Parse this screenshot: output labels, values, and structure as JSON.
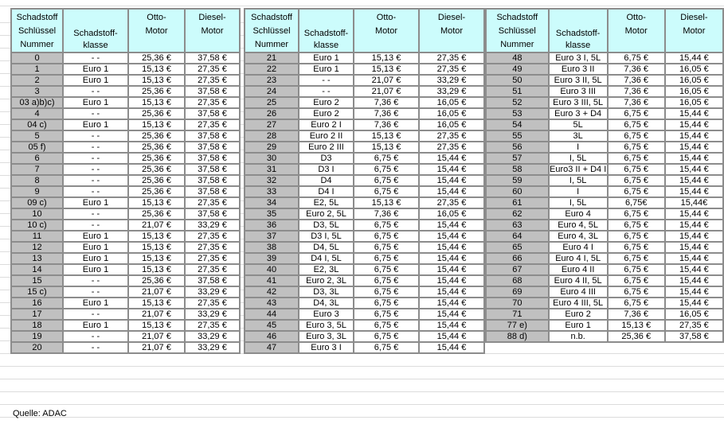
{
  "headers": {
    "number": [
      "Schadstoff",
      "Schlüssel",
      "Nummer"
    ],
    "klasse": [
      "Schadstoff-",
      "klasse"
    ],
    "otto": [
      "Otto-",
      "Motor"
    ],
    "diesel": [
      "Diesel-",
      "Motor"
    ]
  },
  "groups": [
    {
      "rows": [
        [
          "0",
          "- -",
          "25,36 €",
          "37,58 €"
        ],
        [
          "1",
          "Euro 1",
          "15,13 €",
          "27,35 €"
        ],
        [
          "2",
          "Euro 1",
          "15,13 €",
          "27,35 €"
        ],
        [
          "3",
          "- -",
          "25,36 €",
          "37,58 €"
        ],
        [
          "03 a)b)c)",
          "Euro 1",
          "15,13 €",
          "27,35 €"
        ],
        [
          "4",
          "- -",
          "25,36 €",
          "37,58 €"
        ],
        [
          "04 c)",
          "Euro 1",
          "15,13 €",
          "27,35 €"
        ],
        [
          "5",
          "- -",
          "25,36 €",
          "37,58 €"
        ],
        [
          "05 f)",
          "- -",
          "25,36 €",
          "37,58 €"
        ],
        [
          "6",
          "- -",
          "25,36 €",
          "37,58 €"
        ],
        [
          "7",
          "- -",
          "25,36 €",
          "37,58 €"
        ],
        [
          "8",
          "- -",
          "25,36 €",
          "37,58 €"
        ],
        [
          "9",
          "- -",
          "25,36 €",
          "37,58 €"
        ],
        [
          "09 c)",
          "Euro 1",
          "15,13 €",
          "27,35 €"
        ],
        [
          "10",
          "- -",
          "25,36 €",
          "37,58 €"
        ],
        [
          "10 c)",
          "- -",
          "21,07 €",
          "33,29 €"
        ],
        [
          "11",
          "Euro 1",
          "15,13 €",
          "27,35 €"
        ],
        [
          "12",
          "Euro 1",
          "15,13 €",
          "27,35 €"
        ],
        [
          "13",
          "Euro 1",
          "15,13 €",
          "27,35 €"
        ],
        [
          "14",
          "Euro 1",
          "15,13 €",
          "27,35 €"
        ],
        [
          "15",
          "- -",
          "25,36 €",
          "37,58 €"
        ],
        [
          "15 c)",
          "- -",
          "21,07 €",
          "33,29 €"
        ],
        [
          "16",
          "Euro 1",
          "15,13 €",
          "27,35 €"
        ],
        [
          "17",
          "- -",
          "21,07 €",
          "33,29 €"
        ],
        [
          "18",
          "Euro 1",
          "15,13 €",
          "27,35 €"
        ],
        [
          "19",
          "- -",
          "21,07 €",
          "33,29 €"
        ],
        [
          "20",
          "- -",
          "21,07 €",
          "33,29 €"
        ]
      ]
    },
    {
      "rows": [
        [
          "21",
          "Euro 1",
          "15,13 €",
          "27,35 €"
        ],
        [
          "22",
          "Euro 1",
          "15,13 €",
          "27,35 €"
        ],
        [
          "23",
          "- -",
          "21,07 €",
          "33,29 €"
        ],
        [
          "24",
          "- -",
          "21,07 €",
          "33,29 €"
        ],
        [
          "25",
          "Euro 2",
          "7,36 €",
          "16,05 €"
        ],
        [
          "26",
          "Euro 2",
          "7,36 €",
          "16,05 €"
        ],
        [
          "27",
          "Euro 2 I",
          "7,36 €",
          "16,05 €"
        ],
        [
          "28",
          "Euro 2 II",
          "15,13 €",
          "27,35 €"
        ],
        [
          "29",
          "Euro 2 III",
          "15,13 €",
          "27,35 €"
        ],
        [
          "30",
          "D3",
          "6,75 €",
          "15,44 €"
        ],
        [
          "31",
          "D3 I",
          "6,75 €",
          "15,44 €"
        ],
        [
          "32",
          "D4",
          "6,75 €",
          "15,44 €"
        ],
        [
          "33",
          "D4 I",
          "6,75 €",
          "15,44 €"
        ],
        [
          "34",
          "E2, 5L",
          "15,13 €",
          "27,35 €"
        ],
        [
          "35",
          "Euro 2, 5L",
          "7,36 €",
          "16,05 €"
        ],
        [
          "36",
          "D3, 5L",
          "6,75 €",
          "15,44 €"
        ],
        [
          "37",
          "D3 I, 5L",
          "6,75 €",
          "15,44 €"
        ],
        [
          "38",
          "D4, 5L",
          "6,75 €",
          "15,44 €"
        ],
        [
          "39",
          "D4 I, 5L",
          "6,75 €",
          "15,44 €"
        ],
        [
          "40",
          "E2, 3L",
          "6,75 €",
          "15,44 €"
        ],
        [
          "41",
          "Euro 2, 3L",
          "6,75 €",
          "15,44 €"
        ],
        [
          "42",
          "D3, 3L",
          "6,75 €",
          "15,44 €"
        ],
        [
          "43",
          "D4, 3L",
          "6,75 €",
          "15,44 €"
        ],
        [
          "44",
          "Euro 3",
          "6,75 €",
          "15,44 €"
        ],
        [
          "45",
          "Euro 3, 5L",
          "6,75 €",
          "15,44 €"
        ],
        [
          "46",
          "Euro 3, 3L",
          "6,75 €",
          "15,44 €"
        ],
        [
          "47",
          "Euro 3 I",
          "6,75 €",
          "15,44 €"
        ]
      ]
    },
    {
      "rows": [
        [
          "48",
          "Euro 3 I, 5L",
          "6,75 €",
          "15,44 €"
        ],
        [
          "49",
          "Euro 3 II",
          "7,36 €",
          "16,05 €"
        ],
        [
          "50",
          "Euro 3 II, 5L",
          "7,36 €",
          "16,05 €"
        ],
        [
          "51",
          "Euro 3 III",
          "7,36 €",
          "16,05 €"
        ],
        [
          "52",
          "Euro 3 III, 5L",
          "7,36 €",
          "16,05 €"
        ],
        [
          "53",
          "Euro 3 + D4",
          "6,75 €",
          "15,44 €"
        ],
        [
          "54",
          "5L",
          "6,75 €",
          "15,44 €"
        ],
        [
          "55",
          "3L",
          "6,75 €",
          "15,44 €"
        ],
        [
          "56",
          "I",
          "6,75 €",
          "15,44 €"
        ],
        [
          "57",
          "I, 5L",
          "6,75 €",
          "15,44 €"
        ],
        [
          "58",
          "Euro3 II + D4 I",
          "6,75 €",
          "15,44 €"
        ],
        [
          "59",
          "I, 5L",
          "6,75 €",
          "15,44 €"
        ],
        [
          "60",
          "I",
          "6,75 €",
          "15,44 €"
        ],
        [
          "61",
          "I, 5L",
          "6,75€",
          "15,44€"
        ],
        [
          "62",
          "Euro 4",
          "6,75 €",
          "15,44 €"
        ],
        [
          "63",
          "Euro 4, 5L",
          "6,75 €",
          "15,44 €"
        ],
        [
          "64",
          "Euro 4, 3L",
          "6,75 €",
          "15,44 €"
        ],
        [
          "65",
          "Euro 4 I",
          "6,75 €",
          "15,44 €"
        ],
        [
          "66",
          "Euro 4 I, 5L",
          "6,75 €",
          "15,44 €"
        ],
        [
          "67",
          "Euro 4 II",
          "6,75 €",
          "15,44 €"
        ],
        [
          "68",
          "Euro 4 II, 5L",
          "6,75 €",
          "15,44 €"
        ],
        [
          "69",
          "Euro 4 III",
          "6,75 €",
          "15,44 €"
        ],
        [
          "70",
          "Euro 4 III, 5L",
          "6,75 €",
          "15,44 €"
        ],
        [
          "71",
          "Euro 2",
          "7,36 €",
          "16,05 €"
        ],
        [
          "77 e)",
          "Euro 1",
          "15,13 €",
          "27,35 €"
        ],
        [
          "88 d)",
          "n.b.",
          "25,36 €",
          "37,58 €"
        ]
      ]
    }
  ],
  "source": "Quelle: ADAC"
}
